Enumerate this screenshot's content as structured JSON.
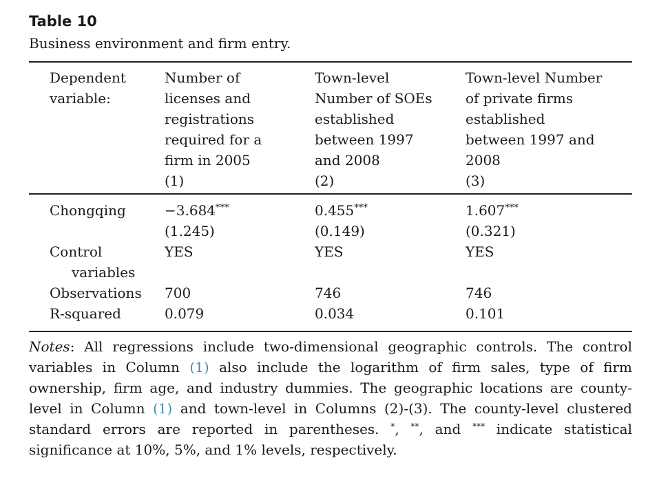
{
  "table": {
    "title": "Table 10",
    "caption": "Business environment and firm entry.",
    "header": {
      "dep_label": "Dependent\nvariable:",
      "col1": "Number of\nlicenses and\nregistrations\nrequired for a\nfirm in 2005\n(1)",
      "col2": "Town-level\nNumber of SOEs\nestablished\nbetween 1997\nand 2008\n(2)",
      "col3": "Town-level Number\nof private firms\nestablished\nbetween 1997 and\n2008\n(3)"
    },
    "rows": {
      "chongqing": {
        "label": "Chongqing",
        "col1_coef": "−3.684",
        "col1_stars": "***",
        "col1_se": "(1.245)",
        "col2_coef": "0.455",
        "col2_stars": "***",
        "col2_se": "(0.149)",
        "col3_coef": "1.607",
        "col3_stars": "***",
        "col3_se": "(0.321)"
      },
      "controls": {
        "label_line1": "Control",
        "label_line2": "variables",
        "col1": "YES",
        "col2": "YES",
        "col3": "YES"
      },
      "observations": {
        "label": "Observations",
        "col1": "700",
        "col2": "746",
        "col3": "746"
      },
      "rsquared": {
        "label": "R-squared",
        "col1": "0.079",
        "col2": "0.034",
        "col3": "0.101"
      }
    }
  },
  "notes": {
    "label": "Notes",
    "p1": ": All regressions include two-dimensional geographic controls. The control variables in Column ",
    "ref1": "(1)",
    "p2": " also include the logarithm of firm sales, type of firm ownership, firm age, and industry dummies. The geographic locations are county-level in Column ",
    "ref2": "(1)",
    "p3": " and town-level in Columns (2)-(3). The county-level clustered standard errors are reported in parentheses. ",
    "s1": "*",
    "p4": ", ",
    "s2": "**",
    "p5": ", and ",
    "s3": "***",
    "p6": " indicate statistical significance at 10%, 5%, and 1% levels, respectively."
  }
}
